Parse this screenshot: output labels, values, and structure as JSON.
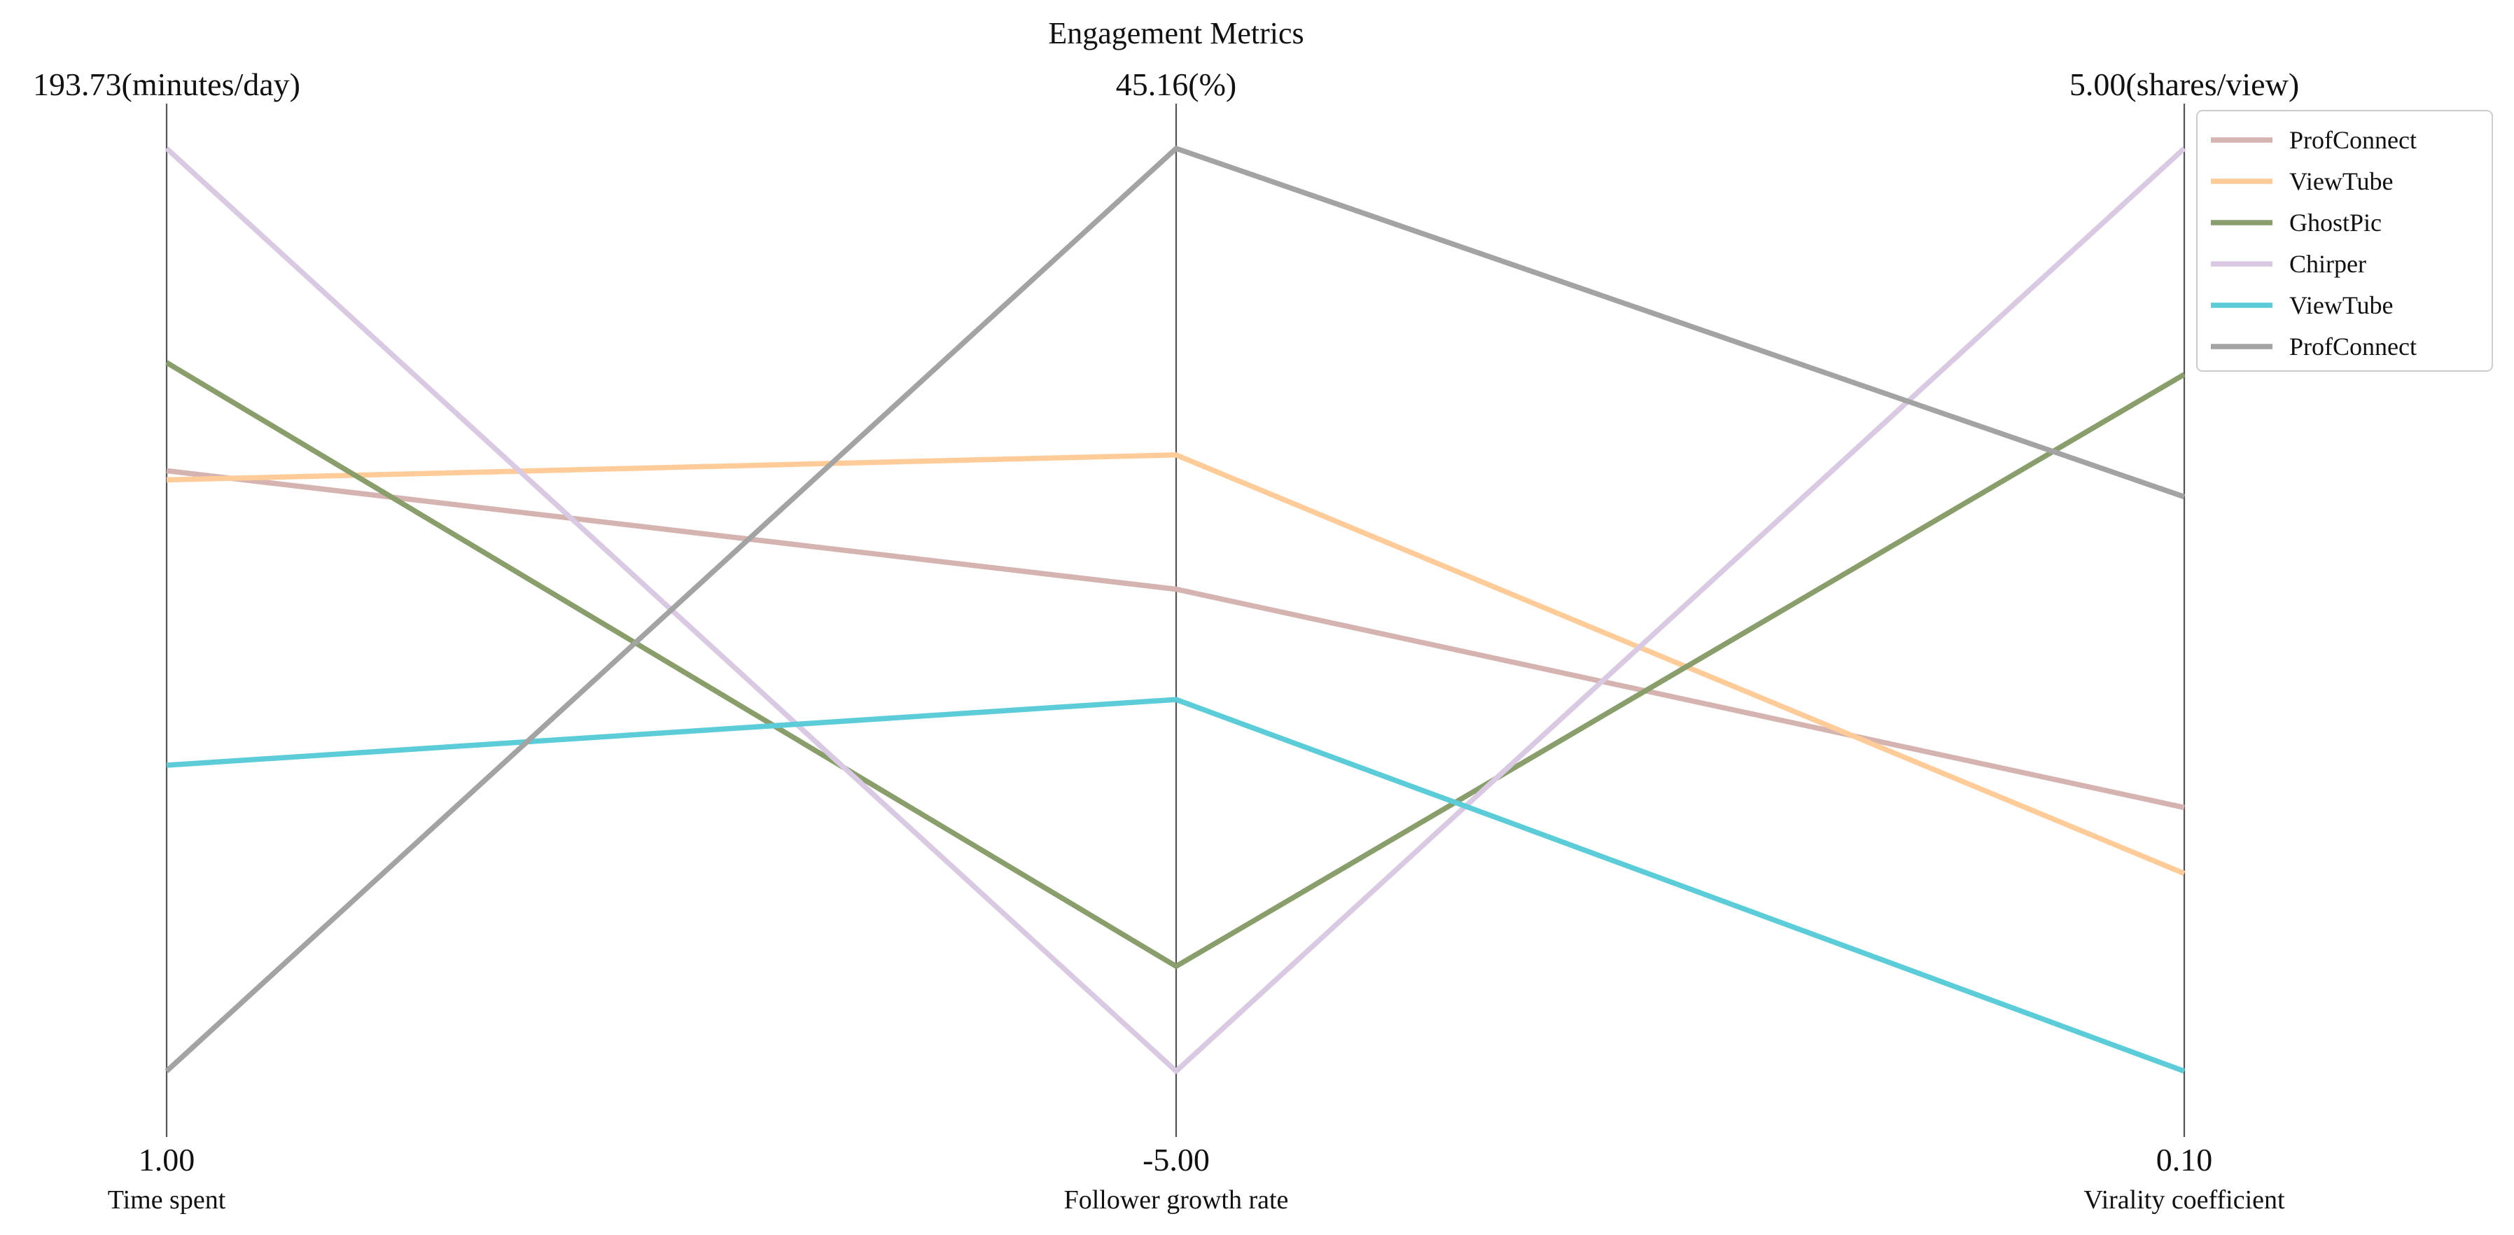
{
  "chart_data": {
    "type": "parallel_coordinates",
    "title": "Engagement Metrics",
    "axes": [
      {
        "name": "Time spent",
        "min_label": "1.00",
        "max_label": "193.73(minutes/day)",
        "min": 1.0,
        "max": 193.73,
        "unit": "minutes/day"
      },
      {
        "name": "Follower growth rate",
        "min_label": "-5.00",
        "max_label": "45.16(%)",
        "min": -5.0,
        "max": 45.16,
        "unit": "%"
      },
      {
        "name": "Virality coefficient",
        "min_label": "0.10",
        "max_label": "5.00(shares/view)",
        "min": 0.1,
        "max": 5.0,
        "unit": "shares/view"
      }
    ],
    "series": [
      {
        "name": "ProfConnect",
        "color": "#d4b3b0",
        "values": [
          126.4,
          21.2,
          1.5
        ]
      },
      {
        "name": "ViewTube",
        "color": "#ffcc99",
        "values": [
          124.5,
          28.5,
          1.15
        ]
      },
      {
        "name": "GhostPic",
        "color": "#8a9e6c",
        "values": [
          149.0,
          0.7,
          3.8
        ]
      },
      {
        "name": "Chirper",
        "color": "#d9c9e2",
        "values": [
          193.73,
          -5.0,
          5.0
        ]
      },
      {
        "name": "ViewTube",
        "color": "#5ccdd8",
        "values": [
          64.9,
          15.2,
          0.1
        ]
      },
      {
        "name": "ProfConnect",
        "color": "#a3a3a3",
        "values": [
          1.0,
          45.16,
          3.15
        ]
      }
    ],
    "legend_position": "upper right",
    "grid": false
  }
}
